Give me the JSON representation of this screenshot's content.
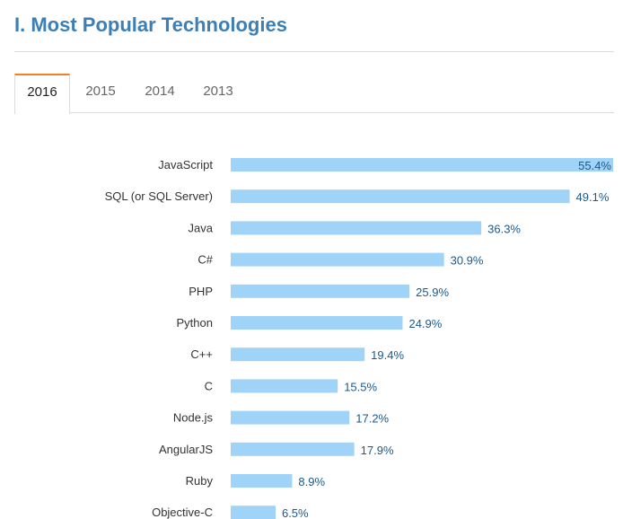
{
  "page": {
    "title": "I. Most Popular Technologies"
  },
  "tabs": [
    {
      "label": "2016",
      "active": true
    },
    {
      "label": "2015",
      "active": false
    },
    {
      "label": "2014",
      "active": false
    },
    {
      "label": "2013",
      "active": false
    }
  ],
  "colors": {
    "bar": "#9fd3f7",
    "title": "#3d7eb4",
    "value_text": "#1c5a8a",
    "active_tab_accent": "#f48024"
  },
  "chart_data": {
    "type": "bar",
    "orientation": "horizontal",
    "title": "",
    "xlabel": "",
    "ylabel": "",
    "xlim": [
      0,
      55.4
    ],
    "grid": false,
    "value_suffix": "%",
    "categories": [
      "JavaScript",
      "SQL (or SQL Server)",
      "Java",
      "C#",
      "PHP",
      "Python",
      "C++",
      "C",
      "Node.js",
      "AngularJS",
      "Ruby",
      "Objective-C"
    ],
    "values": [
      55.4,
      49.1,
      36.3,
      30.9,
      25.9,
      24.9,
      19.4,
      15.5,
      17.2,
      17.9,
      8.9,
      6.5
    ],
    "value_labels": [
      "55.4%",
      "49.1%",
      "36.3%",
      "30.9%",
      "25.9%",
      "24.9%",
      "19.4%",
      "15.5%",
      "17.2%",
      "17.9%",
      "8.9%",
      "6.5%"
    ]
  }
}
